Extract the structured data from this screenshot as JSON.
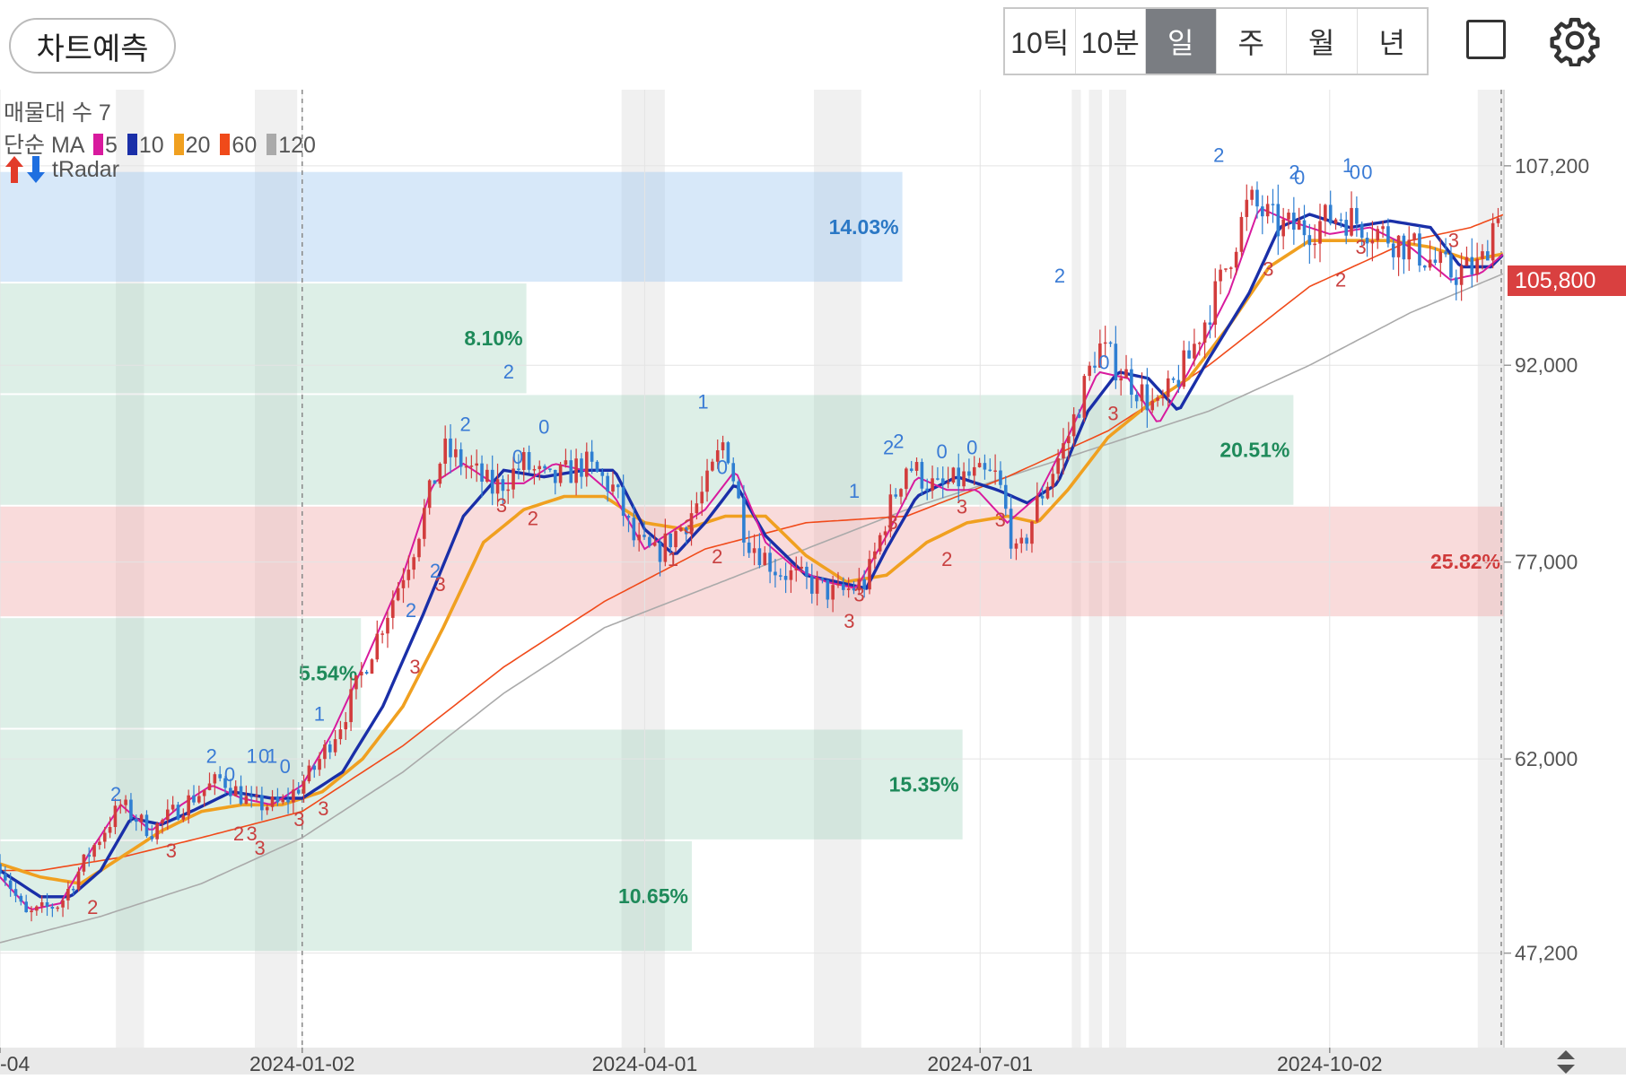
{
  "toolbar": {
    "forecast_label": "차트예측",
    "periods": [
      {
        "label": "10틱",
        "active": false
      },
      {
        "label": "10분",
        "active": false
      },
      {
        "label": "일",
        "active": true
      },
      {
        "label": "주",
        "active": false
      },
      {
        "label": "월",
        "active": false
      },
      {
        "label": "년",
        "active": false
      }
    ],
    "fullscreen_icon": "square-icon",
    "settings_icon": "gear-icon"
  },
  "legend": {
    "volume_profile": "매물대 수 7",
    "ma_title": "단순 MA",
    "ma_periods": [
      {
        "label": "5",
        "color": "#d81b9e"
      },
      {
        "label": "10",
        "color": "#1a2fa8"
      },
      {
        "label": "20",
        "color": "#f0a020"
      },
      {
        "label": "60",
        "color": "#f04a1a"
      },
      {
        "label": "120",
        "color": "#aaaaaa"
      }
    ],
    "radar_label": "tRadar",
    "radar_icons": [
      "arrow-up-icon",
      "arrow-down-icon"
    ]
  },
  "current_price": "105,800",
  "chart_data": {
    "type": "candlestick",
    "x_labels": [
      "-04",
      "2024-01-02",
      "2024-04-01",
      "2024-07-01",
      "2024-10-02"
    ],
    "y_ticks": [
      "107,200",
      "92,000",
      "77,000",
      "62,000",
      "47,200"
    ],
    "ylim": [
      40000,
      113000
    ],
    "volume_profile_zones": [
      {
        "low": 98300,
        "high": 106800,
        "pct": "14.03%",
        "color": "blue"
      },
      {
        "low": 89800,
        "high": 98300,
        "pct": "8.10%",
        "color": "green"
      },
      {
        "low": 81300,
        "high": 89800,
        "pct": "20.51%",
        "color": "green"
      },
      {
        "low": 72800,
        "high": 81300,
        "pct": "25.82%",
        "color": "red"
      },
      {
        "low": 64300,
        "high": 72800,
        "pct": "5.54%",
        "color": "green"
      },
      {
        "low": 55800,
        "high": 64300,
        "pct": "15.35%",
        "color": "green"
      },
      {
        "low": 47300,
        "high": 55800,
        "pct": "10.65%",
        "color": "green"
      }
    ],
    "series": [
      {
        "name": "5"
      },
      {
        "name": "10"
      },
      {
        "name": "20"
      },
      {
        "name": "60"
      },
      {
        "name": "120"
      }
    ],
    "ma60": [
      [
        0,
        53500
      ],
      [
        40,
        53500
      ],
      [
        120,
        54500
      ],
      [
        200,
        56000
      ],
      [
        300,
        58000
      ],
      [
        400,
        63000
      ],
      [
        500,
        69000
      ],
      [
        600,
        74000
      ],
      [
        700,
        78000
      ],
      [
        800,
        80000
      ],
      [
        900,
        80500
      ],
      [
        1000,
        83500
      ],
      [
        1100,
        87000
      ],
      [
        1200,
        92000
      ],
      [
        1300,
        98000
      ],
      [
        1400,
        101500
      ],
      [
        1460,
        102500
      ],
      [
        1493,
        103500
      ]
    ],
    "ma120": [
      [
        0,
        48000
      ],
      [
        100,
        50000
      ],
      [
        200,
        52500
      ],
      [
        300,
        56000
      ],
      [
        400,
        61000
      ],
      [
        500,
        67000
      ],
      [
        600,
        72000
      ],
      [
        700,
        75000
      ],
      [
        800,
        78000
      ],
      [
        900,
        81000
      ],
      [
        1000,
        83500
      ],
      [
        1100,
        86000
      ],
      [
        1200,
        88500
      ],
      [
        1300,
        92000
      ],
      [
        1400,
        96000
      ],
      [
        1493,
        99000
      ]
    ],
    "ma20": [
      [
        0,
        54000
      ],
      [
        40,
        53000
      ],
      [
        80,
        52500
      ],
      [
        120,
        54500
      ],
      [
        160,
        56500
      ],
      [
        200,
        58000
      ],
      [
        240,
        58500
      ],
      [
        280,
        58500
      ],
      [
        320,
        59500
      ],
      [
        360,
        62000
      ],
      [
        400,
        66000
      ],
      [
        440,
        72000
      ],
      [
        480,
        78500
      ],
      [
        520,
        81000
      ],
      [
        560,
        82000
      ],
      [
        600,
        82000
      ],
      [
        640,
        80000
      ],
      [
        680,
        79500
      ],
      [
        720,
        80500
      ],
      [
        760,
        80500
      ],
      [
        800,
        77500
      ],
      [
        840,
        75500
      ],
      [
        880,
        76000
      ],
      [
        920,
        78500
      ],
      [
        960,
        80000
      ],
      [
        1000,
        80500
      ],
      [
        1030,
        80000
      ],
      [
        1060,
        82500
      ],
      [
        1100,
        86500
      ],
      [
        1140,
        89000
      ],
      [
        1180,
        91000
      ],
      [
        1220,
        95000
      ],
      [
        1260,
        99500
      ],
      [
        1300,
        101500
      ],
      [
        1340,
        101500
      ],
      [
        1380,
        101500
      ],
      [
        1420,
        101000
      ],
      [
        1460,
        100000
      ],
      [
        1493,
        100500
      ]
    ],
    "ma10": [
      [
        0,
        53500
      ],
      [
        40,
        51500
      ],
      [
        70,
        51500
      ],
      [
        100,
        53500
      ],
      [
        130,
        57500
      ],
      [
        160,
        57000
      ],
      [
        190,
        58000
      ],
      [
        230,
        59500
      ],
      [
        270,
        59000
      ],
      [
        300,
        59000
      ],
      [
        340,
        61000
      ],
      [
        380,
        66000
      ],
      [
        420,
        73000
      ],
      [
        460,
        80500
      ],
      [
        500,
        84000
      ],
      [
        540,
        83500
      ],
      [
        580,
        84000
      ],
      [
        610,
        84000
      ],
      [
        640,
        79500
      ],
      [
        670,
        77500
      ],
      [
        700,
        80000
      ],
      [
        730,
        83000
      ],
      [
        760,
        79000
      ],
      [
        800,
        76000
      ],
      [
        830,
        75500
      ],
      [
        860,
        75000
      ],
      [
        880,
        78000
      ],
      [
        910,
        82000
      ],
      [
        950,
        83500
      ],
      [
        990,
        82500
      ],
      [
        1020,
        81500
      ],
      [
        1050,
        83000
      ],
      [
        1080,
        88500
      ],
      [
        1110,
        91500
      ],
      [
        1140,
        91000
      ],
      [
        1170,
        88500
      ],
      [
        1200,
        92500
      ],
      [
        1240,
        97500
      ],
      [
        1270,
        102500
      ],
      [
        1300,
        103500
      ],
      [
        1340,
        102500
      ],
      [
        1380,
        103000
      ],
      [
        1420,
        102500
      ],
      [
        1450,
        99500
      ],
      [
        1480,
        99500
      ],
      [
        1493,
        100500
      ]
    ],
    "ma5": [
      [
        0,
        53000
      ],
      [
        30,
        50500
      ],
      [
        60,
        51000
      ],
      [
        90,
        55000
      ],
      [
        120,
        58500
      ],
      [
        150,
        56500
      ],
      [
        180,
        58500
      ],
      [
        210,
        60000
      ],
      [
        240,
        59000
      ],
      [
        270,
        58500
      ],
      [
        300,
        60000
      ],
      [
        330,
        64000
      ],
      [
        360,
        69000
      ],
      [
        400,
        76000
      ],
      [
        430,
        83000
      ],
      [
        460,
        84500
      ],
      [
        490,
        83000
      ],
      [
        520,
        83000
      ],
      [
        550,
        84500
      ],
      [
        580,
        84000
      ],
      [
        610,
        82000
      ],
      [
        640,
        78000
      ],
      [
        670,
        79500
      ],
      [
        700,
        81000
      ],
      [
        730,
        84000
      ],
      [
        760,
        78500
      ],
      [
        790,
        76500
      ],
      [
        820,
        75500
      ],
      [
        850,
        75000
      ],
      [
        880,
        79000
      ],
      [
        910,
        83500
      ],
      [
        940,
        82500
      ],
      [
        970,
        82500
      ],
      [
        1000,
        80000
      ],
      [
        1030,
        82000
      ],
      [
        1060,
        86500
      ],
      [
        1090,
        91500
      ],
      [
        1120,
        91000
      ],
      [
        1150,
        87500
      ],
      [
        1180,
        91500
      ],
      [
        1220,
        97500
      ],
      [
        1250,
        104000
      ],
      [
        1280,
        103000
      ],
      [
        1320,
        102000
      ],
      [
        1360,
        102500
      ],
      [
        1400,
        101000
      ],
      [
        1440,
        98500
      ],
      [
        1470,
        99000
      ],
      [
        1493,
        100500
      ]
    ],
    "price_path": [
      [
        0,
        54000
      ],
      [
        25,
        50000
      ],
      [
        60,
        51000
      ],
      [
        90,
        55000
      ],
      [
        120,
        58500
      ],
      [
        150,
        56500
      ],
      [
        190,
        59000
      ],
      [
        220,
        60500
      ],
      [
        250,
        58500
      ],
      [
        280,
        58500
      ],
      [
        310,
        61000
      ],
      [
        340,
        65000
      ],
      [
        370,
        70500
      ],
      [
        410,
        78000
      ],
      [
        440,
        85500
      ],
      [
        460,
        84500
      ],
      [
        490,
        82500
      ],
      [
        520,
        84500
      ],
      [
        545,
        83000
      ],
      [
        580,
        84500
      ],
      [
        610,
        82500
      ],
      [
        630,
        78500
      ],
      [
        650,
        77500
      ],
      [
        680,
        80000
      ],
      [
        700,
        82500
      ],
      [
        720,
        86500
      ],
      [
        740,
        79000
      ],
      [
        770,
        76500
      ],
      [
        800,
        75500
      ],
      [
        830,
        74500
      ],
      [
        860,
        75500
      ],
      [
        880,
        80500
      ],
      [
        900,
        84500
      ],
      [
        930,
        82500
      ],
      [
        960,
        83500
      ],
      [
        990,
        83500
      ],
      [
        1010,
        77000
      ],
      [
        1030,
        81500
      ],
      [
        1060,
        86500
      ],
      [
        1090,
        93500
      ],
      [
        1120,
        91000
      ],
      [
        1150,
        88500
      ],
      [
        1180,
        92500
      ],
      [
        1210,
        98000
      ],
      [
        1240,
        104500
      ],
      [
        1270,
        102500
      ],
      [
        1300,
        102500
      ],
      [
        1330,
        103500
      ],
      [
        1360,
        102500
      ],
      [
        1400,
        101000
      ],
      [
        1440,
        99000
      ],
      [
        1470,
        99500
      ],
      [
        1493,
        105800
      ]
    ],
    "cycle_markers": [
      {
        "t": 115,
        "label": "2",
        "y": 58800,
        "color": "#3a7bd5"
      },
      {
        "t": 92,
        "label": "2",
        "y": 50200,
        "color": "#c94040"
      },
      {
        "t": 210,
        "label": "2",
        "y": 61700,
        "color": "#3a7bd5"
      },
      {
        "t": 228,
        "label": "0",
        "y": 60300,
        "color": "#3a7bd5"
      },
      {
        "t": 250,
        "label": "1",
        "y": 61700,
        "color": "#3a7bd5"
      },
      {
        "t": 262,
        "label": "0",
        "y": 61700,
        "color": "#3a7bd5"
      },
      {
        "t": 270,
        "label": "1",
        "y": 61700,
        "color": "#3a7bd5"
      },
      {
        "t": 283,
        "label": "0",
        "y": 60900,
        "color": "#3a7bd5"
      },
      {
        "t": 317,
        "label": "1",
        "y": 64900,
        "color": "#3a7bd5"
      },
      {
        "t": 170,
        "label": "3",
        "y": 54500,
        "color": "#c94040"
      },
      {
        "t": 237,
        "label": "2",
        "y": 55800,
        "color": "#c94040"
      },
      {
        "t": 250,
        "label": "3",
        "y": 55800,
        "color": "#c94040"
      },
      {
        "t": 258,
        "label": "3",
        "y": 54700,
        "color": "#c94040"
      },
      {
        "t": 297,
        "label": "3",
        "y": 56900,
        "color": "#c94040"
      },
      {
        "t": 321,
        "label": "3",
        "y": 57700,
        "color": "#c94040"
      },
      {
        "t": 408,
        "label": "2",
        "y": 72800,
        "color": "#3a7bd5"
      },
      {
        "t": 432,
        "label": "2",
        "y": 75800,
        "color": "#3a7bd5"
      },
      {
        "t": 437,
        "label": "3",
        "y": 74800,
        "color": "#c94040"
      },
      {
        "t": 412,
        "label": "3",
        "y": 68500,
        "color": "#c94040"
      },
      {
        "t": 462,
        "label": "2",
        "y": 87000,
        "color": "#3a7bd5"
      },
      {
        "t": 505,
        "label": "2",
        "y": 91000,
        "color": "#3a7bd5"
      },
      {
        "t": 514,
        "label": "0",
        "y": 84500,
        "color": "#3a7bd5"
      },
      {
        "t": 540,
        "label": "0",
        "y": 86800,
        "color": "#3a7bd5"
      },
      {
        "t": 498,
        "label": "3",
        "y": 80800,
        "color": "#c94040"
      },
      {
        "t": 529,
        "label": "2",
        "y": 79800,
        "color": "#c94040"
      },
      {
        "t": 698,
        "label": "1",
        "y": 88700,
        "color": "#3a7bd5"
      },
      {
        "t": 717,
        "label": "0",
        "y": 83700,
        "color": "#3a7bd5"
      },
      {
        "t": 684,
        "label": "3",
        "y": 79200,
        "color": "#c94040"
      },
      {
        "t": 668,
        "label": "1",
        "y": 76700,
        "color": "#c94040"
      },
      {
        "t": 712,
        "label": "2",
        "y": 76900,
        "color": "#c94040"
      },
      {
        "t": 848,
        "label": "1",
        "y": 81900,
        "color": "#3a7bd5"
      },
      {
        "t": 882,
        "label": "2",
        "y": 85200,
        "color": "#3a7bd5"
      },
      {
        "t": 892,
        "label": "2",
        "y": 85700,
        "color": "#3a7bd5"
      },
      {
        "t": 935,
        "label": "0",
        "y": 84900,
        "color": "#3a7bd5"
      },
      {
        "t": 965,
        "label": "0",
        "y": 85200,
        "color": "#3a7bd5"
      },
      {
        "t": 886,
        "label": "3",
        "y": 79500,
        "color": "#c94040"
      },
      {
        "t": 853,
        "label": "3",
        "y": 74000,
        "color": "#c94040"
      },
      {
        "t": 843,
        "label": "3",
        "y": 72000,
        "color": "#c94040"
      },
      {
        "t": 940,
        "label": "2",
        "y": 76700,
        "color": "#c94040"
      },
      {
        "t": 955,
        "label": "3",
        "y": 80700,
        "color": "#c94040"
      },
      {
        "t": 993,
        "label": "3",
        "y": 79700,
        "color": "#c94040"
      },
      {
        "t": 1052,
        "label": "2",
        "y": 98300,
        "color": "#3a7bd5"
      },
      {
        "t": 1096,
        "label": "0",
        "y": 91700,
        "color": "#3a7bd5"
      },
      {
        "t": 1105,
        "label": "3",
        "y": 87800,
        "color": "#c94040"
      },
      {
        "t": 1210,
        "label": "2",
        "y": 107500,
        "color": "#3a7bd5"
      },
      {
        "t": 1285,
        "label": "2",
        "y": 106200,
        "color": "#3a7bd5"
      },
      {
        "t": 1290,
        "label": "0",
        "y": 105800,
        "color": "#3a7bd5"
      },
      {
        "t": 1338,
        "label": "1",
        "y": 106700,
        "color": "#3a7bd5"
      },
      {
        "t": 1345,
        "label": "0",
        "y": 106200,
        "color": "#3a7bd5"
      },
      {
        "t": 1357,
        "label": "0",
        "y": 106200,
        "color": "#3a7bd5"
      },
      {
        "t": 1259,
        "label": "3",
        "y": 98800,
        "color": "#c94040"
      },
      {
        "t": 1331,
        "label": "2",
        "y": 98000,
        "color": "#c94040"
      },
      {
        "t": 1351,
        "label": "3",
        "y": 100500,
        "color": "#c94040"
      },
      {
        "t": 1443,
        "label": "3",
        "y": 101000,
        "color": "#c94040"
      }
    ]
  }
}
